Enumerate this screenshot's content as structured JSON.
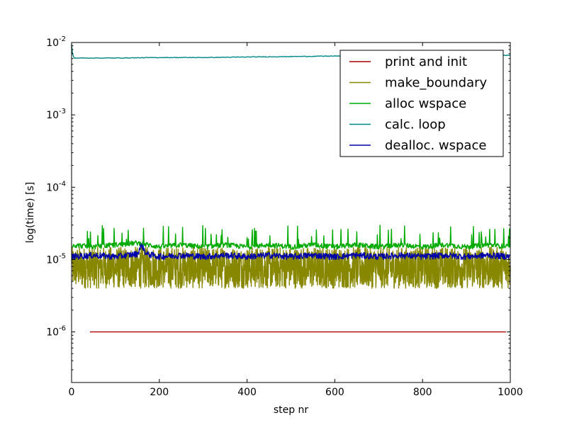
{
  "chart_data": {
    "type": "line",
    "title": "",
    "xlabel": "step nr",
    "ylabel": "log(time) [s]",
    "x_scale": "linear",
    "y_scale": "log",
    "xlim": [
      0,
      1000
    ],
    "ylim": [
      2e-07,
      0.01
    ],
    "x_ticks": [
      0,
      200,
      400,
      600,
      800,
      1000
    ],
    "x_tick_labels": [
      "0",
      "200",
      "400",
      "600",
      "800",
      "1000"
    ],
    "y_ticks": [
      1e-06,
      1e-05,
      0.0001,
      0.001,
      0.01
    ],
    "y_tick_labels": [
      {
        "base": "10",
        "exp": "-6"
      },
      {
        "base": "10",
        "exp": "-5"
      },
      {
        "base": "10",
        "exp": "-4"
      },
      {
        "base": "10",
        "exp": "-3"
      },
      {
        "base": "10",
        "exp": "-2"
      }
    ],
    "grid": false,
    "legend_position": "top-right",
    "series": [
      {
        "name": "print and init",
        "color": "#aa0000",
        "x": [
          42,
          990
        ],
        "y": [
          1e-06,
          1e-06
        ]
      },
      {
        "name": "make_boundary",
        "color": "#888800",
        "x": [
          0,
          50,
          100,
          150,
          200,
          250,
          300,
          350,
          400,
          450,
          500,
          550,
          600,
          650,
          700,
          750,
          800,
          850,
          900,
          950,
          1000
        ],
        "y": [
          1.5e-05,
          7e-06,
          9e-06,
          6e-06,
          8e-06,
          7e-06,
          9e-06,
          6e-06,
          8e-06,
          7e-06,
          9e-06,
          6e-06,
          8e-06,
          7e-06,
          9e-06,
          6e-06,
          8e-06,
          7e-06,
          9e-06,
          6e-06,
          8e-06
        ],
        "y_min": 4e-06,
        "y_max": 1.5e-05
      },
      {
        "name": "alloc wspace",
        "color": "#00aa00",
        "x": [
          0,
          50,
          100,
          150,
          200,
          250,
          300,
          350,
          400,
          450,
          500,
          550,
          600,
          650,
          700,
          750,
          800,
          850,
          900,
          950,
          1000
        ],
        "y": [
          1.6e-05,
          1.5e-05,
          1.6e-05,
          1.7e-05,
          1.5e-05,
          1.6e-05,
          1.5e-05,
          1.6e-05,
          1.5e-05,
          1.6e-05,
          1.5e-05,
          1.6e-05,
          1.5e-05,
          1.6e-05,
          1.5e-05,
          1.6e-05,
          1.5e-05,
          1.6e-05,
          1.5e-05,
          1.6e-05,
          1.5e-05
        ],
        "spikes_up_to": 3e-05
      },
      {
        "name": "calc. loop",
        "color": "#008888",
        "x": [
          0,
          2,
          5,
          100,
          200,
          300,
          400,
          500,
          600,
          700,
          800,
          900,
          1000
        ],
        "y": [
          0.0095,
          0.0072,
          0.0061,
          0.0061,
          0.0062,
          0.0062,
          0.0063,
          0.0064,
          0.0065,
          0.0065,
          0.0066,
          0.0066,
          0.0067
        ]
      },
      {
        "name": "dealloc. wspace",
        "color": "#0000aa",
        "x": [
          0,
          50,
          100,
          150,
          160,
          170,
          200,
          250,
          300,
          350,
          400,
          450,
          500,
          550,
          600,
          650,
          700,
          750,
          800,
          850,
          900,
          950,
          1000
        ],
        "y": [
          1.1e-05,
          1.15e-05,
          1.1e-05,
          1.2e-05,
          1.6e-05,
          1.2e-05,
          1.1e-05,
          1.15e-05,
          1.1e-05,
          1.15e-05,
          1.1e-05,
          1.15e-05,
          1.1e-05,
          1.15e-05,
          1.1e-05,
          1.15e-05,
          1.1e-05,
          1.15e-05,
          1.1e-05,
          1.15e-05,
          1.1e-05,
          1.15e-05,
          1.1e-05
        ]
      }
    ]
  }
}
